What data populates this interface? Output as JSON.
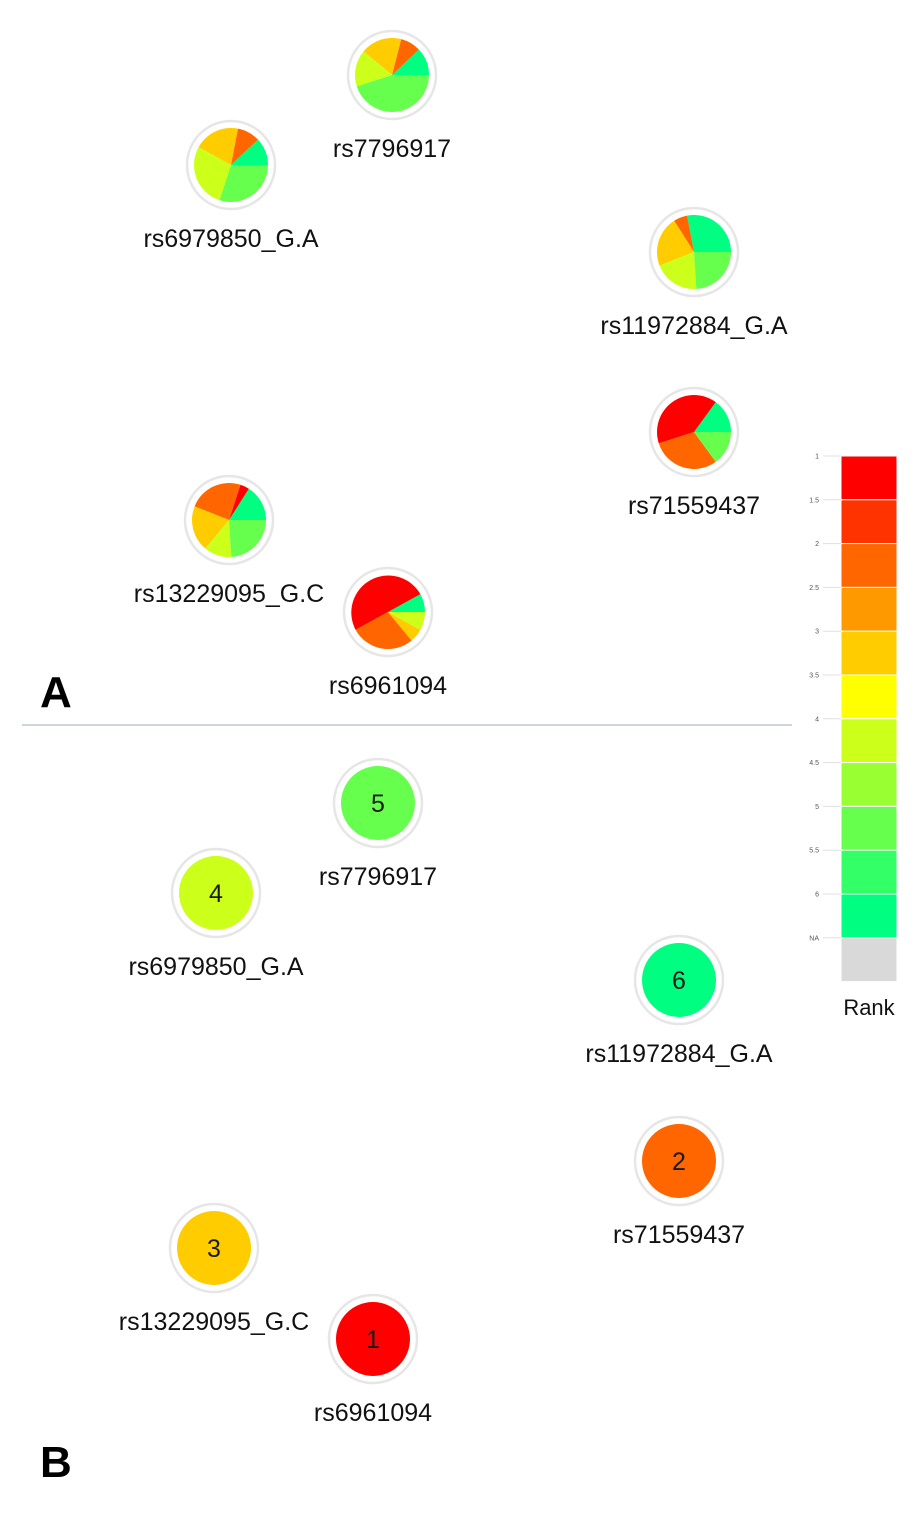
{
  "panels": [
    {
      "letter": "A",
      "type": "pie",
      "nodes": [
        {
          "id": "rs7796917",
          "label": "rs7796917",
          "slices": [
            {
              "rank": 6,
              "frac": 0.12
            },
            {
              "rank": 2,
              "frac": 0.09
            },
            {
              "rank": 3,
              "frac": 0.18
            },
            {
              "rank": 4,
              "frac": 0.16
            },
            {
              "rank": 5,
              "frac": 0.45
            }
          ]
        },
        {
          "id": "rs6979850_G.A",
          "label": "rs6979850_G.A",
          "slices": [
            {
              "rank": 6,
              "frac": 0.12
            },
            {
              "rank": 2,
              "frac": 0.1
            },
            {
              "rank": 3,
              "frac": 0.2
            },
            {
              "rank": 4,
              "frac": 0.28
            },
            {
              "rank": 5,
              "frac": 0.3
            }
          ]
        },
        {
          "id": "rs11972884_G.A",
          "label": "rs11972884_G.A",
          "slices": [
            {
              "rank": 6,
              "frac": 0.28
            },
            {
              "rank": 2,
              "frac": 0.06
            },
            {
              "rank": 3,
              "frac": 0.22
            },
            {
              "rank": 4,
              "frac": 0.2
            },
            {
              "rank": 5,
              "frac": 0.24
            }
          ]
        },
        {
          "id": "rs71559437",
          "label": "rs71559437",
          "slices": [
            {
              "rank": 6,
              "frac": 0.15
            },
            {
              "rank": 1,
              "frac": 0.4
            },
            {
              "rank": 2,
              "frac": 0.3
            },
            {
              "rank": 5,
              "frac": 0.15
            }
          ]
        },
        {
          "id": "rs13229095_G.C",
          "label": "rs13229095_G.C",
          "slices": [
            {
              "rank": 6,
              "frac": 0.16
            },
            {
              "rank": 1,
              "frac": 0.04
            },
            {
              "rank": 2,
              "frac": 0.24
            },
            {
              "rank": 3,
              "frac": 0.2
            },
            {
              "rank": 4,
              "frac": 0.12
            },
            {
              "rank": 5,
              "frac": 0.24
            }
          ]
        },
        {
          "id": "rs6961094",
          "label": "rs6961094",
          "slices": [
            {
              "rank": 6,
              "frac": 0.08
            },
            {
              "rank": 1,
              "frac": 0.5
            },
            {
              "rank": 2,
              "frac": 0.28
            },
            {
              "rank": 3,
              "frac": 0.06
            },
            {
              "rank": 4,
              "frac": 0.08
            }
          ]
        }
      ]
    },
    {
      "letter": "B",
      "type": "rank",
      "nodes": [
        {
          "id": "rs7796917",
          "label": "rs7796917",
          "rank": 5
        },
        {
          "id": "rs6979850_G.A",
          "label": "rs6979850_G.A",
          "rank": 4
        },
        {
          "id": "rs11972884_G.A",
          "label": "rs11972884_G.A",
          "rank": 6
        },
        {
          "id": "rs71559437",
          "label": "rs71559437",
          "rank": 2
        },
        {
          "id": "rs13229095_G.C",
          "label": "rs13229095_G.C",
          "rank": 3
        },
        {
          "id": "rs6961094",
          "label": "rs6961094",
          "rank": 1
        }
      ]
    }
  ],
  "legend": {
    "title": "Rank",
    "ticks": [
      "1",
      "1.5",
      "2",
      "2.5",
      "3",
      "3.5",
      "4",
      "4.5",
      "5",
      "5.5",
      "6",
      "NA"
    ],
    "colors": [
      "#ff0000",
      "#ff3300",
      "#ff6600",
      "#ff9900",
      "#ffcc00",
      "#ffff00",
      "#ccff1a",
      "#99ff33",
      "#66ff4d",
      "#33ff66",
      "#00ff80",
      "#d9d9d9"
    ]
  },
  "rank_colors": {
    "1": "#ff0000",
    "2": "#ff6600",
    "3": "#ffcc00",
    "4": "#ccff1a",
    "5": "#66ff4d",
    "6": "#00ff80"
  }
}
